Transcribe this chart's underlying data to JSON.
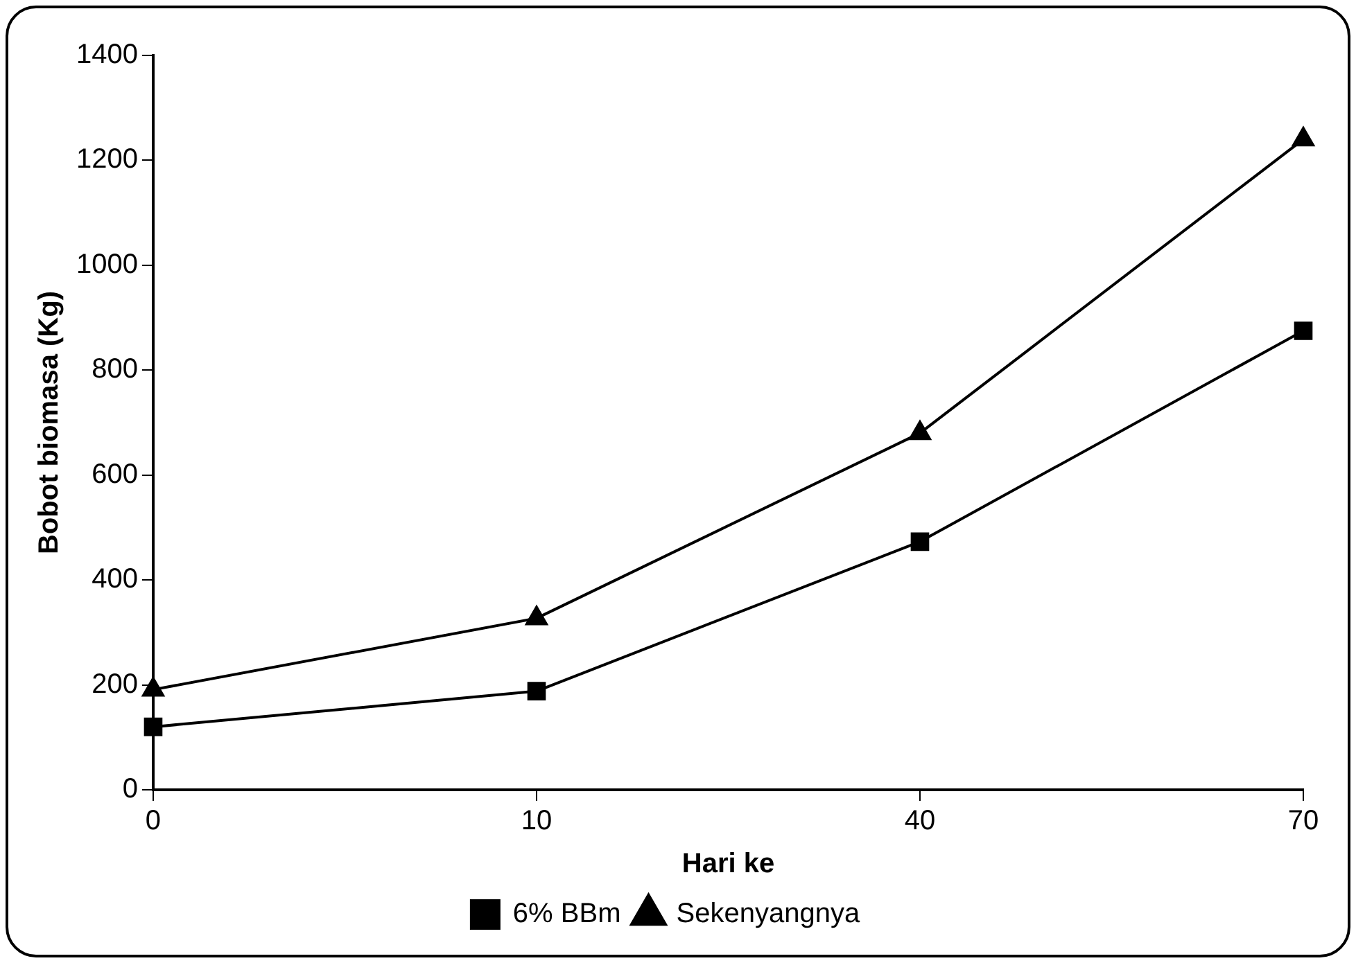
{
  "chart_data": {
    "type": "line",
    "xlabel": "Hari ke",
    "ylabel": "Bobot biomasa (Kg)",
    "categories": [
      "0",
      "10",
      "40",
      "70"
    ],
    "series": [
      {
        "name": "6% BBm",
        "color": "#000000",
        "marker": "square",
        "values": [
          120,
          188,
          473,
          875
        ]
      },
      {
        "name": "Sekenyangnya",
        "color": "#000000",
        "marker": "triangle",
        "values": [
          191,
          327,
          680,
          1240
        ]
      }
    ],
    "ylim": [
      0,
      1400
    ],
    "yticks": [
      0,
      200,
      400,
      600,
      800,
      1000,
      1200,
      1400
    ],
    "grid": false,
    "legend": "bottom",
    "line_style": "solid"
  }
}
